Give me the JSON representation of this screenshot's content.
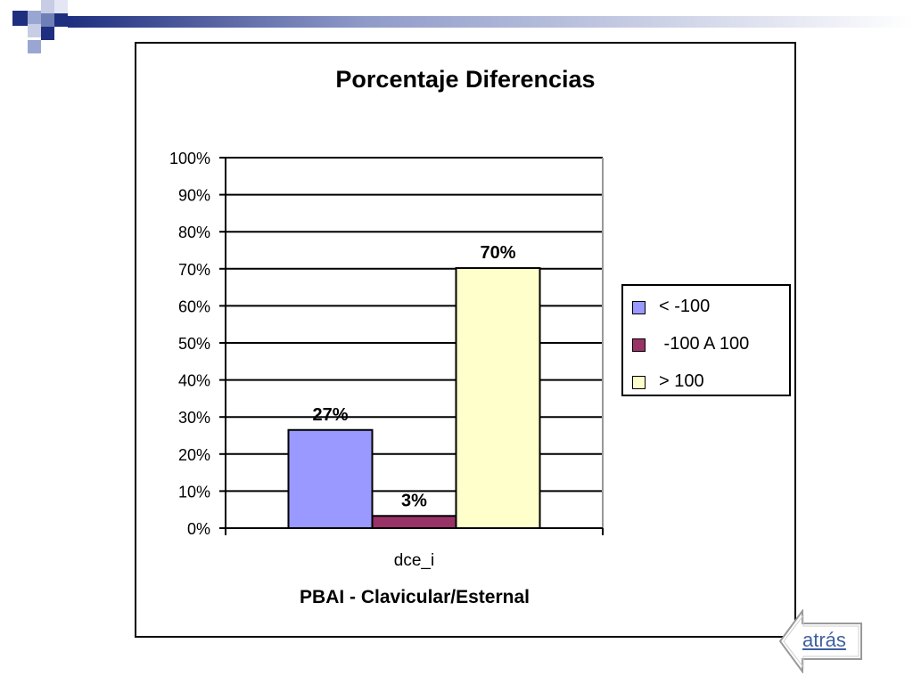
{
  "chart_data": {
    "type": "bar",
    "title": "Porcentaje Diferencias",
    "xlabel": "PBAI - Clavicular/Esternal",
    "ylabel": "",
    "ylim": [
      0,
      100
    ],
    "yticks": [
      "0%",
      "10%",
      "20%",
      "30%",
      "40%",
      "50%",
      "60%",
      "70%",
      "80%",
      "90%",
      "100%"
    ],
    "categories": [
      "dce_i"
    ],
    "series": [
      {
        "name": "< -100",
        "values": [
          26.5
        ],
        "data_label": "27%",
        "color": "#9999ff"
      },
      {
        "name": " -100 A 100",
        "values": [
          3.3
        ],
        "data_label": "3%",
        "color": "#993366"
      },
      {
        "name": "> 100",
        "values": [
          70.2
        ],
        "data_label": "70%",
        "color": "#ffffcc"
      }
    ],
    "grid": true,
    "legend_position": "right"
  },
  "nav": {
    "back_label": "atrás"
  },
  "colors": {
    "deco_dark": "#1f2f7f",
    "deco_mid": "#6f7fb8",
    "deco_light": "#c8cde6",
    "link": "#3f5f9f"
  }
}
